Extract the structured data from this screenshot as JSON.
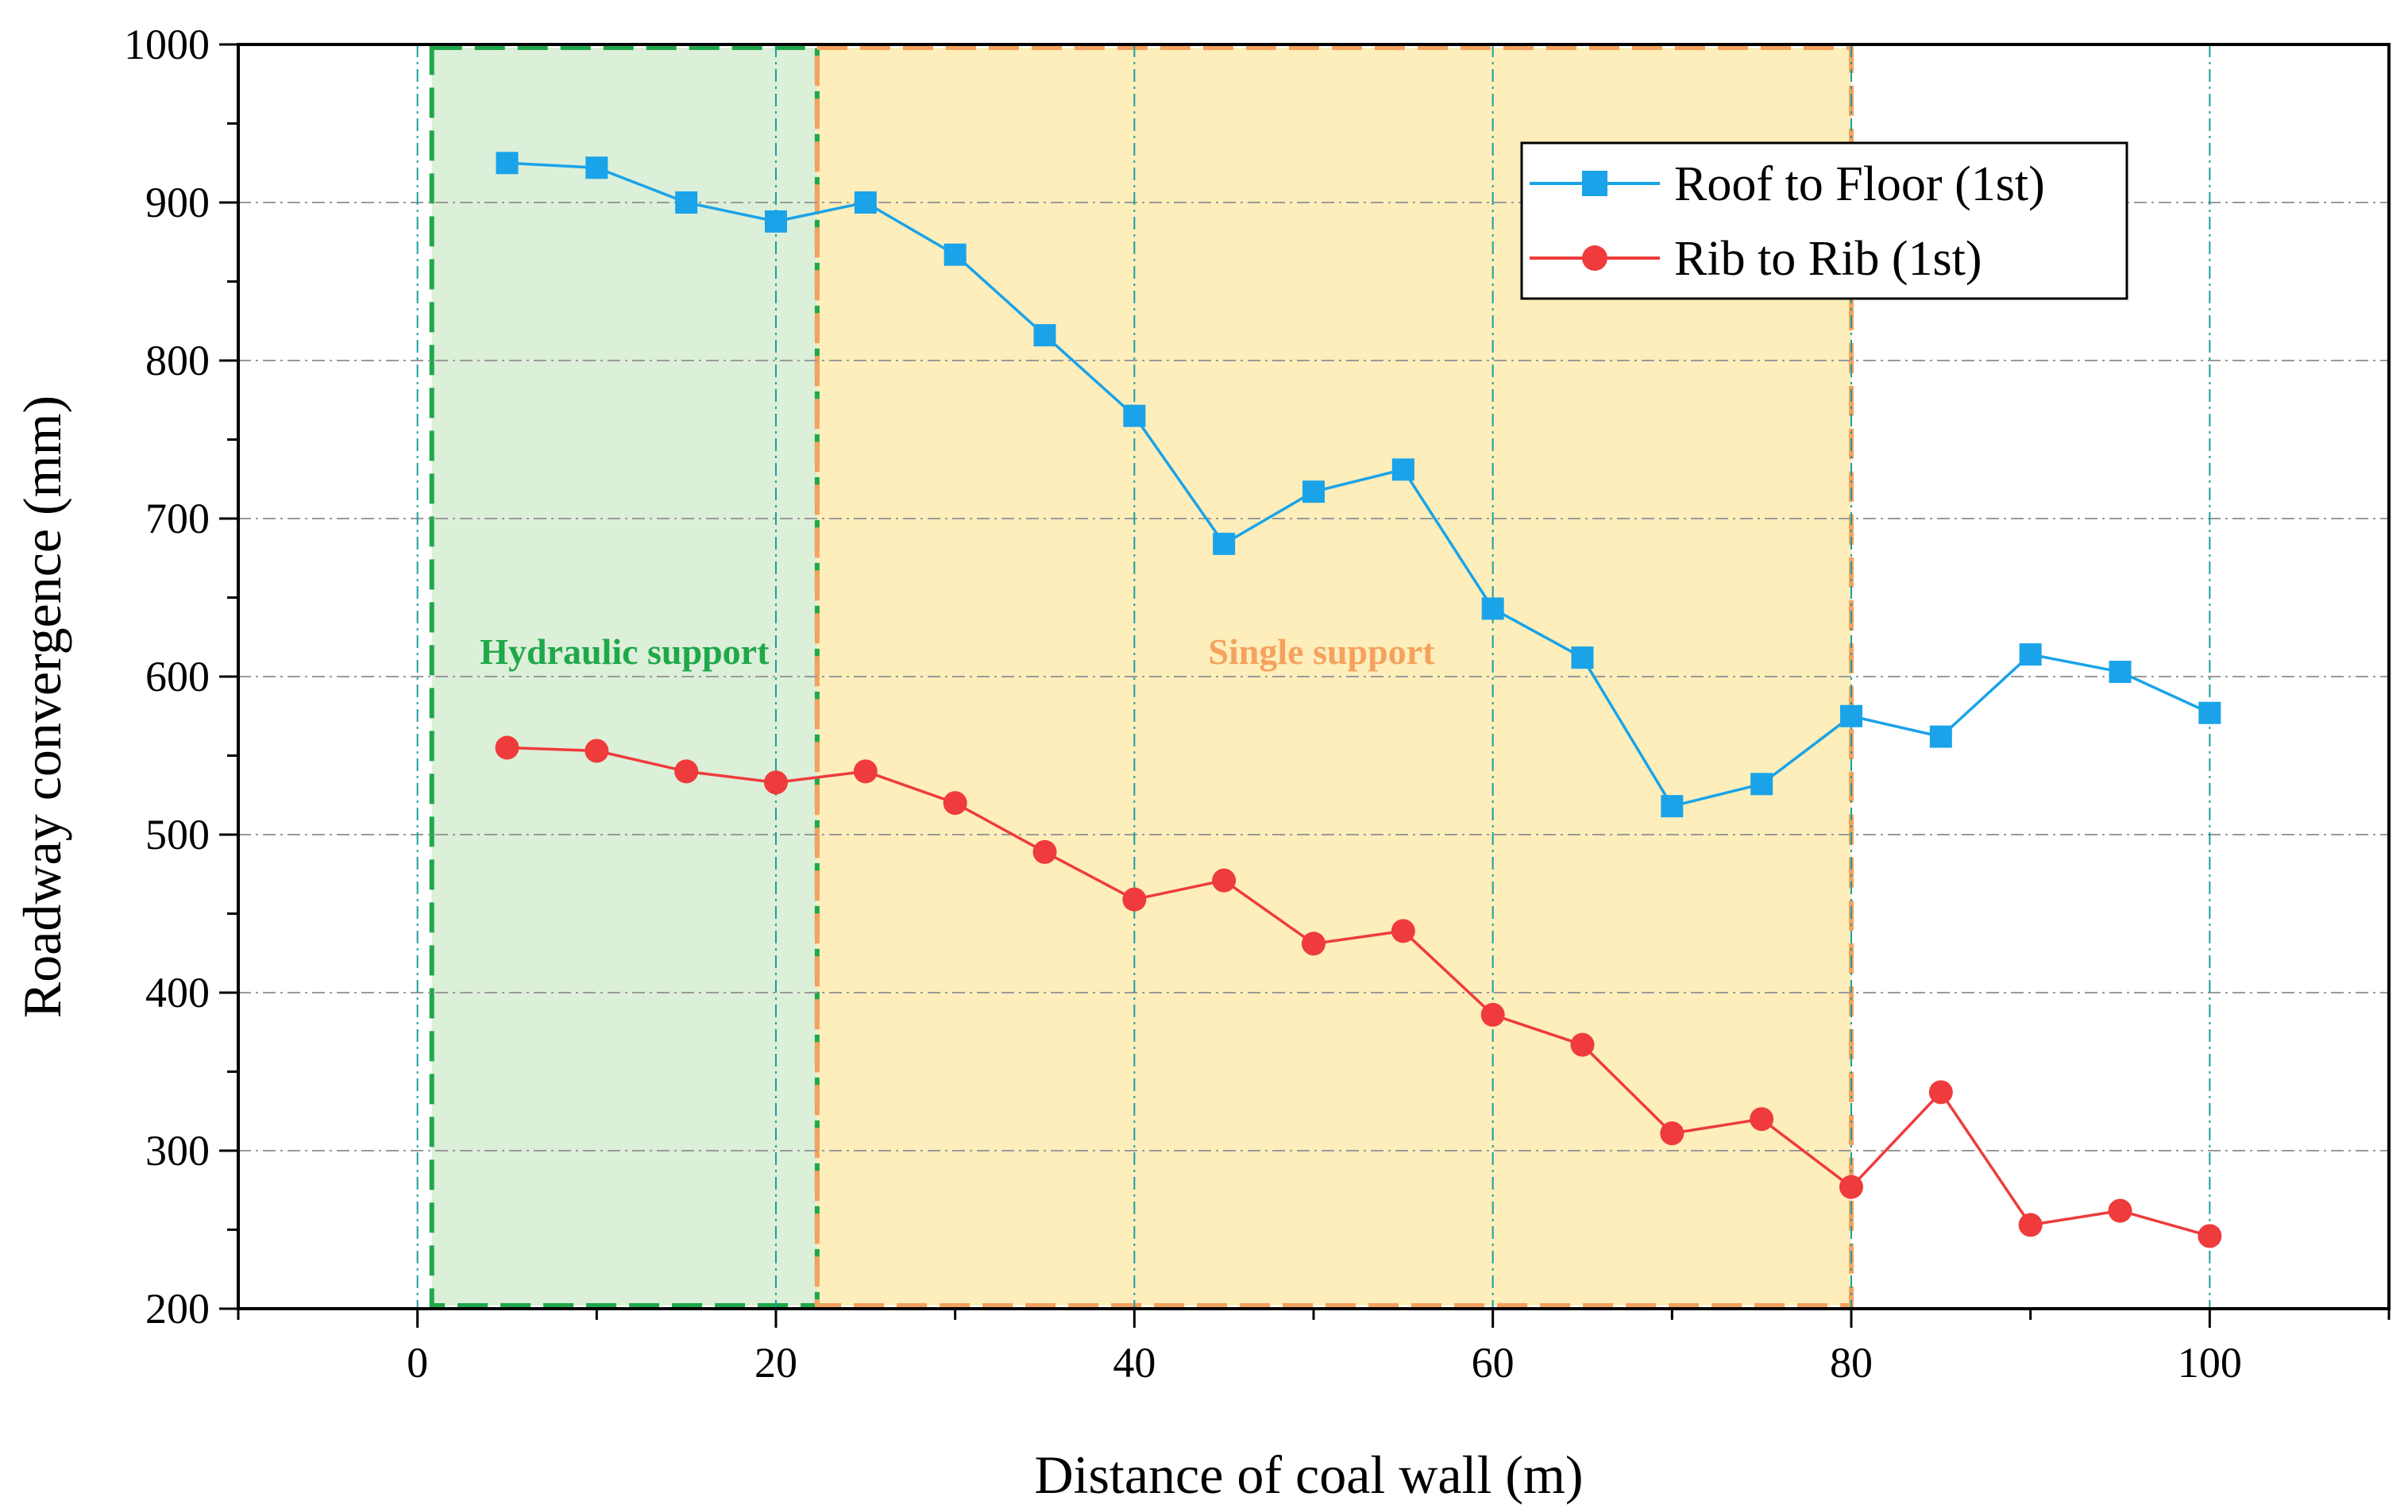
{
  "chart_data": {
    "type": "line",
    "title": "",
    "xlabel": "Distance of coal wall (m)",
    "ylabel": "Roadway convergence (mm)",
    "xlim": [
      -10,
      110
    ],
    "ylim": [
      200,
      1000
    ],
    "xticks": [
      0,
      20,
      40,
      60,
      80,
      100
    ],
    "yticks": [
      200,
      300,
      400,
      500,
      600,
      700,
      800,
      900,
      1000
    ],
    "x": [
      5,
      10,
      15,
      20,
      25,
      30,
      35,
      40,
      45,
      50,
      55,
      60,
      65,
      70,
      75,
      80,
      85,
      90,
      95,
      100
    ],
    "series": [
      {
        "name": "Roof to Floor (1st)",
        "marker": "square",
        "color": "#1aa3e8",
        "values": [
          925,
          922,
          900,
          888,
          900,
          867,
          816,
          765,
          684,
          717,
          731,
          643,
          612,
          518,
          532,
          575,
          562,
          614,
          603,
          577
        ]
      },
      {
        "name": "Rib to Rib (1st)",
        "marker": "circle",
        "color": "#ef3b3b",
        "values": [
          555,
          553,
          540,
          533,
          540,
          520,
          489,
          459,
          471,
          431,
          439,
          386,
          367,
          311,
          320,
          277,
          337,
          253,
          262,
          246
        ]
      }
    ],
    "regions": [
      {
        "label": "Hydraulic support",
        "x_from": 0.8,
        "x_to": 22.3,
        "fill": "#dcefd8",
        "edge": "#1fa84a",
        "text_color": "#1fa84a"
      },
      {
        "label": "Single support",
        "x_from": 22.3,
        "x_to": 80,
        "fill": "#fdeebb",
        "edge": "#f4a25d",
        "text_color": "#f4a25d"
      }
    ],
    "vertical_guides_x": [
      0,
      20,
      40,
      60,
      80,
      100
    ],
    "grid": "horizontal dash-dot",
    "legend_position": "top-right"
  }
}
